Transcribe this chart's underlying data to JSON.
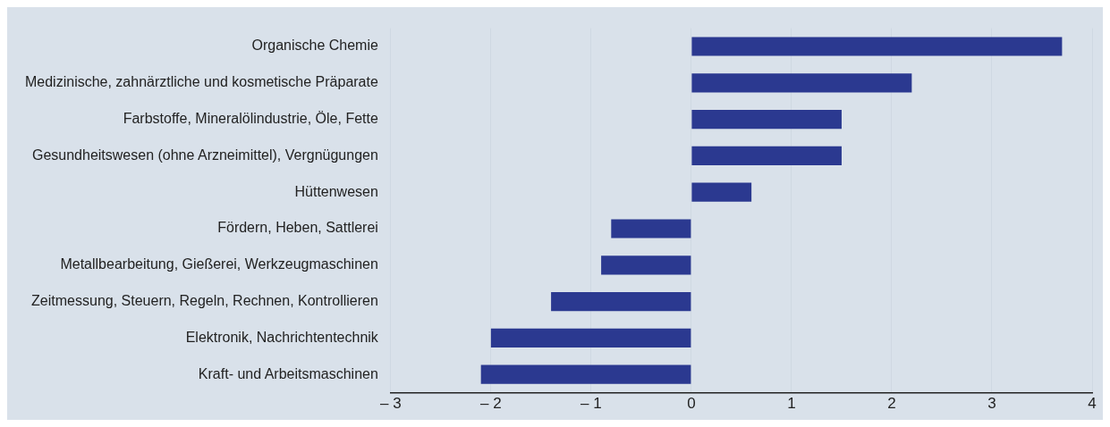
{
  "chart_data": {
    "type": "bar",
    "orientation": "horizontal",
    "categories": [
      "Organische Chemie",
      "Medizinische, zahnärztliche und kosmetische Präparate",
      "Farbstoffe, Mineralölindustrie, Öle, Fette",
      "Gesundheitswesen (ohne Arzneimittel), Vergnügungen",
      "Hüttenwesen",
      "Fördern, Heben, Sattlerei",
      "Metallbearbeitung, Gießerei, Werkzeugmaschinen",
      "Zeitmessung, Steuern, Regeln, Rechnen, Kontrollieren",
      "Elektronik, Nachrichtentechnik",
      "Kraft- und Arbeitsmaschinen"
    ],
    "values": [
      3.7,
      2.2,
      1.5,
      1.5,
      0.6,
      -0.8,
      -0.9,
      -1.4,
      -2.0,
      -2.1
    ],
    "color": "#2b3990",
    "xlim": [
      -3,
      4
    ],
    "xticks": [
      {
        "value": -3,
        "label": "– 3"
      },
      {
        "value": -2,
        "label": "– 2"
      },
      {
        "value": -1,
        "label": "– 1"
      },
      0,
      1,
      2,
      3,
      4
    ],
    "grid": "x"
  }
}
